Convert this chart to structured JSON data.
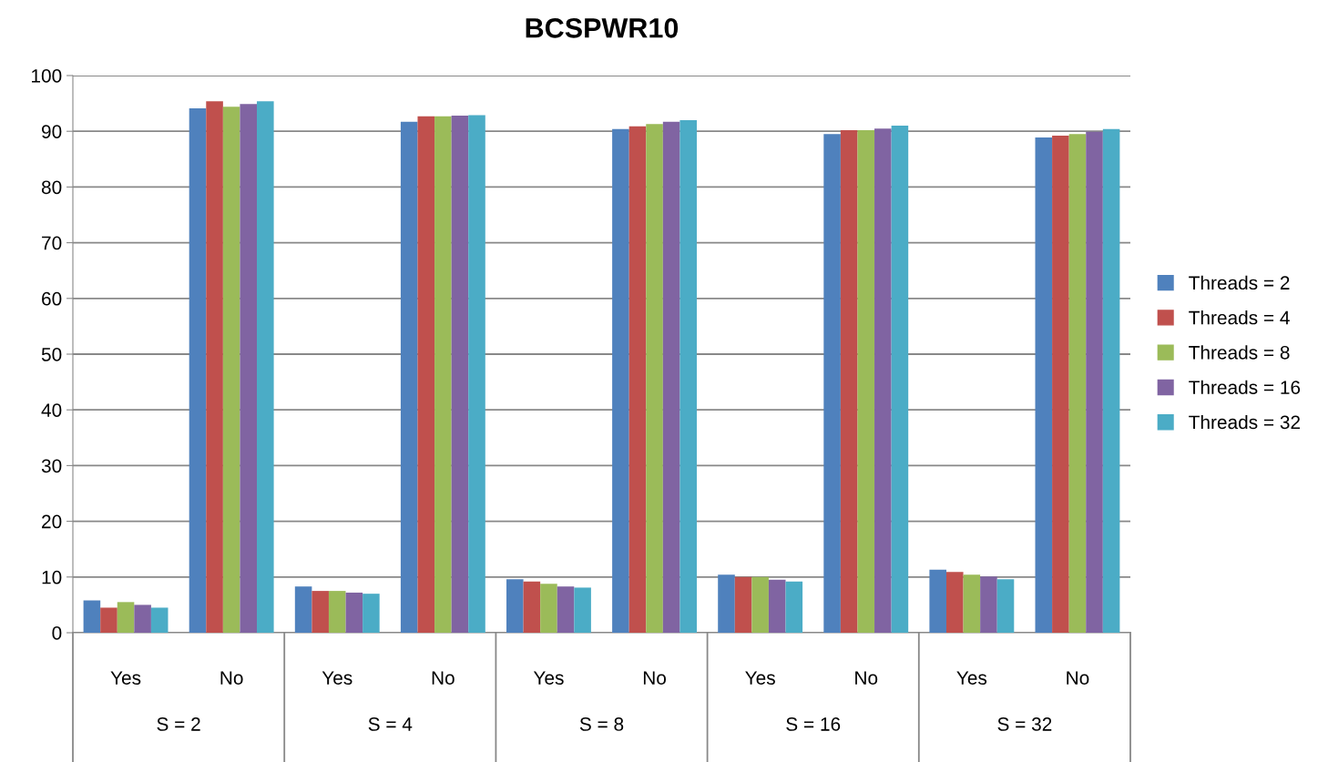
{
  "chart_data": {
    "type": "bar",
    "title": "BCSPWR10",
    "categories": [
      "Yes",
      "No",
      "Yes",
      "No",
      "Yes",
      "No",
      "Yes",
      "No",
      "Yes",
      "No"
    ],
    "annotations": [
      "S = 2",
      "S = 4",
      "S = 8",
      "S = 16",
      "S = 32"
    ],
    "series": [
      {
        "name": "Threads = 2",
        "color": "#4f81bd",
        "values": [
          5.8,
          94.1,
          8.3,
          91.7,
          9.6,
          90.4,
          10.4,
          89.5,
          11.3,
          88.9
        ]
      },
      {
        "name": "Threads = 4",
        "color": "#c0504d",
        "values": [
          4.5,
          95.4,
          7.5,
          92.7,
          9.2,
          90.9,
          10.0,
          90.2,
          10.9,
          89.2
        ]
      },
      {
        "name": "Threads = 8",
        "color": "#9bbb59",
        "values": [
          5.5,
          94.4,
          7.5,
          92.7,
          8.8,
          91.3,
          10.0,
          90.2,
          10.4,
          89.5
        ]
      },
      {
        "name": "Threads = 16",
        "color": "#8064a2",
        "values": [
          5.0,
          94.9,
          7.2,
          92.8,
          8.3,
          91.7,
          9.5,
          90.5,
          10.1,
          89.9
        ]
      },
      {
        "name": "Threads = 32",
        "color": "#4bacc6",
        "values": [
          4.5,
          95.4,
          7.0,
          92.9,
          8.1,
          92.0,
          9.2,
          91.0,
          9.6,
          90.4
        ]
      }
    ],
    "ylim": [
      0,
      100
    ],
    "yticks": [
      0,
      10,
      20,
      30,
      40,
      50,
      60,
      70,
      80,
      90,
      100
    ],
    "grid": "y",
    "legend": "right"
  }
}
